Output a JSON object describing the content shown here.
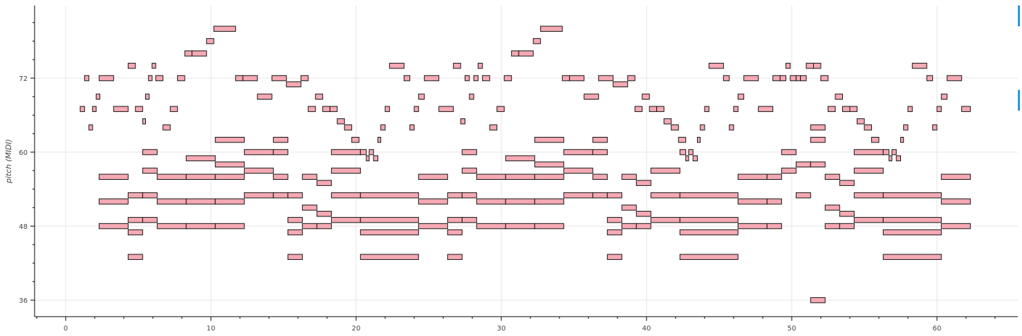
{
  "colors": {
    "note_fill": "#f4a9b3",
    "note_stroke": "#111111",
    "grid": "#e5e5e5",
    "accent": "#1a9be6"
  },
  "chart_data": {
    "type": "piano-roll",
    "ylabel": "pitch (MIDI)",
    "xlabel": "",
    "xlim": [
      -5,
      65.5
    ],
    "ylim": [
      33.5,
      83.5
    ],
    "x_ticks": [
      0,
      10,
      20,
      30,
      40,
      50,
      60
    ],
    "y_ticks": [
      36,
      48,
      60,
      72
    ],
    "x_tick_labels": [
      "0",
      "10",
      "20",
      "30",
      "40",
      "50",
      "60"
    ],
    "y_tick_labels": [
      "36",
      "48",
      "60",
      "72"
    ],
    "grid": true,
    "notes": [
      [
        1.0,
        1.3,
        67
      ],
      [
        1.3,
        1.6,
        72
      ],
      [
        1.6,
        1.85,
        64
      ],
      [
        1.85,
        2.1,
        67
      ],
      [
        2.1,
        2.35,
        69
      ],
      [
        2.3,
        3.3,
        72
      ],
      [
        3.3,
        4.3,
        67
      ],
      [
        2.3,
        4.3,
        56
      ],
      [
        2.3,
        4.3,
        52
      ],
      [
        2.3,
        4.3,
        48
      ],
      [
        4.3,
        4.8,
        74
      ],
      [
        4.8,
        5.3,
        67
      ],
      [
        5.3,
        5.5,
        65
      ],
      [
        5.5,
        5.75,
        69
      ],
      [
        5.7,
        5.95,
        72
      ],
      [
        5.95,
        6.2,
        74
      ],
      [
        6.2,
        6.7,
        72
      ],
      [
        6.7,
        7.2,
        64
      ],
      [
        7.2,
        7.7,
        67
      ],
      [
        7.7,
        8.2,
        72
      ],
      [
        8.2,
        8.7,
        76
      ],
      [
        8.7,
        9.7,
        76
      ],
      [
        9.7,
        10.2,
        78
      ],
      [
        10.2,
        11.7,
        80
      ],
      [
        11.7,
        12.2,
        72
      ],
      [
        12.2,
        13.2,
        72
      ],
      [
        13.2,
        14.2,
        69
      ],
      [
        14.2,
        15.2,
        72
      ],
      [
        15.2,
        16.2,
        71
      ],
      [
        16.2,
        16.7,
        72
      ],
      [
        16.7,
        17.2,
        67
      ],
      [
        17.2,
        17.7,
        69
      ],
      [
        17.7,
        18.2,
        67
      ],
      [
        18.2,
        18.7,
        67
      ],
      [
        18.7,
        19.2,
        65
      ],
      [
        19.2,
        19.7,
        64
      ],
      [
        19.7,
        20.2,
        62
      ],
      [
        4.3,
        5.3,
        53
      ],
      [
        5.3,
        6.3,
        53
      ],
      [
        4.3,
        5.3,
        49
      ],
      [
        5.3,
        6.3,
        49
      ],
      [
        4.3,
        5.3,
        47
      ],
      [
        4.3,
        5.3,
        43
      ],
      [
        5.3,
        6.3,
        60
      ],
      [
        5.3,
        6.3,
        57
      ],
      [
        6.3,
        8.3,
        56
      ],
      [
        8.3,
        10.3,
        56
      ],
      [
        10.3,
        12.3,
        56
      ],
      [
        6.3,
        8.3,
        52
      ],
      [
        8.3,
        10.3,
        52
      ],
      [
        10.3,
        12.3,
        52
      ],
      [
        6.3,
        8.3,
        48
      ],
      [
        8.3,
        10.3,
        48
      ],
      [
        10.3,
        12.3,
        48
      ],
      [
        8.3,
        10.3,
        59
      ],
      [
        10.3,
        12.3,
        58
      ],
      [
        10.3,
        12.3,
        62
      ],
      [
        12.3,
        14.3,
        60
      ],
      [
        14.3,
        15.3,
        60
      ],
      [
        12.3,
        14.3,
        57
      ],
      [
        14.3,
        15.3,
        56
      ],
      [
        12.3,
        14.3,
        53
      ],
      [
        14.3,
        15.3,
        53
      ],
      [
        15.3,
        16.3,
        53
      ],
      [
        14.3,
        15.3,
        62
      ],
      [
        15.3,
        16.3,
        49
      ],
      [
        15.3,
        16.3,
        47
      ],
      [
        15.3,
        16.3,
        43
      ],
      [
        16.3,
        17.3,
        56
      ],
      [
        17.3,
        18.3,
        55
      ],
      [
        16.3,
        17.3,
        51
      ],
      [
        17.3,
        18.3,
        50
      ],
      [
        16.3,
        17.3,
        48
      ],
      [
        17.3,
        18.3,
        48
      ],
      [
        18.3,
        20.3,
        60
      ],
      [
        18.3,
        20.3,
        57
      ],
      [
        18.3,
        20.3,
        53
      ],
      [
        18.3,
        20.3,
        49
      ],
      [
        20.3,
        24.3,
        53
      ],
      [
        20.3,
        24.3,
        49
      ],
      [
        20.3,
        24.3,
        47
      ],
      [
        20.3,
        24.3,
        43
      ],
      [
        20.3,
        20.7,
        60
      ],
      [
        20.7,
        20.9,
        59
      ],
      [
        20.9,
        21.2,
        60
      ],
      [
        21.2,
        21.5,
        59
      ],
      [
        21.5,
        21.7,
        62
      ],
      [
        21.7,
        22.0,
        64
      ],
      [
        22.0,
        22.3,
        67
      ],
      [
        22.3,
        23.3,
        74
      ],
      [
        23.3,
        23.7,
        72
      ],
      [
        23.7,
        24.0,
        64
      ],
      [
        24.0,
        24.3,
        67
      ],
      [
        24.3,
        24.7,
        69
      ],
      [
        24.7,
        25.7,
        72
      ],
      [
        25.7,
        26.7,
        67
      ],
      [
        26.7,
        27.2,
        74
      ],
      [
        27.2,
        27.5,
        65
      ],
      [
        27.5,
        27.8,
        72
      ],
      [
        27.8,
        28.1,
        69
      ],
      [
        28.1,
        28.4,
        72
      ],
      [
        28.4,
        28.7,
        74
      ],
      [
        28.7,
        29.2,
        72
      ],
      [
        29.2,
        29.7,
        64
      ],
      [
        29.7,
        30.2,
        67
      ],
      [
        30.2,
        30.7,
        72
      ],
      [
        30.7,
        31.2,
        76
      ],
      [
        31.2,
        32.2,
        76
      ],
      [
        32.2,
        32.7,
        78
      ],
      [
        32.7,
        34.2,
        80
      ],
      [
        34.2,
        34.7,
        72
      ],
      [
        34.7,
        35.7,
        72
      ],
      [
        35.7,
        36.7,
        69
      ],
      [
        36.7,
        37.7,
        72
      ],
      [
        37.7,
        38.7,
        71
      ],
      [
        38.7,
        39.2,
        72
      ],
      [
        39.2,
        39.7,
        67
      ],
      [
        39.7,
        40.2,
        69
      ],
      [
        40.2,
        40.7,
        67
      ],
      [
        40.7,
        41.2,
        67
      ],
      [
        41.2,
        41.7,
        65
      ],
      [
        41.7,
        42.2,
        64
      ],
      [
        42.2,
        42.7,
        62
      ],
      [
        24.3,
        26.3,
        56
      ],
      [
        24.3,
        26.3,
        52
      ],
      [
        24.3,
        26.3,
        48
      ],
      [
        26.3,
        27.3,
        53
      ],
      [
        26.3,
        27.3,
        49
      ],
      [
        26.3,
        27.3,
        47
      ],
      [
        26.3,
        27.3,
        43
      ],
      [
        27.3,
        28.3,
        53
      ],
      [
        27.3,
        28.3,
        49
      ],
      [
        27.3,
        28.3,
        60
      ],
      [
        27.3,
        28.3,
        57
      ],
      [
        28.3,
        30.3,
        56
      ],
      [
        30.3,
        32.3,
        56
      ],
      [
        32.3,
        34.3,
        56
      ],
      [
        28.3,
        30.3,
        52
      ],
      [
        30.3,
        32.3,
        52
      ],
      [
        32.3,
        34.3,
        52
      ],
      [
        28.3,
        30.3,
        48
      ],
      [
        30.3,
        32.3,
        48
      ],
      [
        32.3,
        34.3,
        48
      ],
      [
        30.3,
        32.3,
        59
      ],
      [
        32.3,
        34.3,
        58
      ],
      [
        32.3,
        34.3,
        62
      ],
      [
        34.3,
        36.3,
        60
      ],
      [
        36.3,
        37.3,
        60
      ],
      [
        34.3,
        36.3,
        57
      ],
      [
        36.3,
        37.3,
        56
      ],
      [
        34.3,
        36.3,
        53
      ],
      [
        36.3,
        37.3,
        53
      ],
      [
        37.3,
        38.3,
        53
      ],
      [
        36.3,
        37.3,
        62
      ],
      [
        37.3,
        38.3,
        49
      ],
      [
        37.3,
        38.3,
        47
      ],
      [
        37.3,
        38.3,
        43
      ],
      [
        38.3,
        39.3,
        56
      ],
      [
        39.3,
        40.3,
        55
      ],
      [
        38.3,
        39.3,
        51
      ],
      [
        39.3,
        40.3,
        50
      ],
      [
        38.3,
        39.3,
        48
      ],
      [
        39.3,
        40.3,
        48
      ],
      [
        40.3,
        42.3,
        57
      ],
      [
        40.3,
        42.3,
        53
      ],
      [
        40.3,
        42.3,
        49
      ],
      [
        42.3,
        46.3,
        53
      ],
      [
        42.3,
        46.3,
        49
      ],
      [
        42.3,
        46.3,
        47
      ],
      [
        42.3,
        46.3,
        43
      ],
      [
        42.3,
        42.7,
        60
      ],
      [
        42.7,
        42.9,
        59
      ],
      [
        42.9,
        43.2,
        60
      ],
      [
        43.2,
        43.5,
        59
      ],
      [
        43.5,
        43.7,
        62
      ],
      [
        43.7,
        44.0,
        64
      ],
      [
        44.0,
        44.3,
        67
      ],
      [
        44.3,
        45.3,
        74
      ],
      [
        45.3,
        45.7,
        72
      ],
      [
        45.7,
        46.0,
        64
      ],
      [
        46.0,
        46.3,
        67
      ],
      [
        46.3,
        46.7,
        69
      ],
      [
        46.7,
        47.7,
        72
      ],
      [
        47.7,
        48.7,
        67
      ],
      [
        48.7,
        49.2,
        72
      ],
      [
        49.2,
        49.6,
        72
      ],
      [
        49.6,
        49.9,
        74
      ],
      [
        49.9,
        50.3,
        72
      ],
      [
        50.3,
        50.6,
        72
      ],
      [
        50.6,
        51.0,
        72
      ],
      [
        51.0,
        51.5,
        74
      ],
      [
        51.5,
        52.0,
        74
      ],
      [
        52.0,
        52.5,
        72
      ],
      [
        52.5,
        53.0,
        67
      ],
      [
        53.0,
        53.5,
        69
      ],
      [
        53.5,
        54.0,
        67
      ],
      [
        54.0,
        54.5,
        67
      ],
      [
        54.5,
        55.0,
        65
      ],
      [
        55.0,
        55.5,
        64
      ],
      [
        55.5,
        56.0,
        62
      ],
      [
        46.3,
        48.3,
        56
      ],
      [
        48.3,
        49.3,
        56
      ],
      [
        46.3,
        48.3,
        52
      ],
      [
        48.3,
        49.3,
        52
      ],
      [
        46.3,
        48.3,
        48
      ],
      [
        48.3,
        49.3,
        48
      ],
      [
        49.3,
        50.3,
        60
      ],
      [
        49.3,
        50.3,
        57
      ],
      [
        50.3,
        51.3,
        53
      ],
      [
        50.3,
        51.3,
        58
      ],
      [
        51.3,
        52.3,
        64
      ],
      [
        51.3,
        52.3,
        62
      ],
      [
        51.3,
        52.3,
        58
      ],
      [
        51.3,
        52.3,
        36
      ],
      [
        52.3,
        53.3,
        56
      ],
      [
        53.3,
        54.3,
        55
      ],
      [
        52.3,
        53.3,
        51
      ],
      [
        53.3,
        54.3,
        50
      ],
      [
        52.3,
        53.3,
        48
      ],
      [
        53.3,
        54.3,
        48
      ],
      [
        54.3,
        56.3,
        60
      ],
      [
        54.3,
        56.3,
        57
      ],
      [
        54.3,
        56.3,
        53
      ],
      [
        54.3,
        56.3,
        49
      ],
      [
        56.3,
        60.3,
        53
      ],
      [
        56.3,
        60.3,
        49
      ],
      [
        56.3,
        60.3,
        47
      ],
      [
        56.3,
        60.3,
        43
      ],
      [
        56.3,
        56.7,
        60
      ],
      [
        56.7,
        56.9,
        59
      ],
      [
        56.9,
        57.2,
        60
      ],
      [
        57.2,
        57.5,
        59
      ],
      [
        57.5,
        57.7,
        62
      ],
      [
        57.7,
        58.0,
        64
      ],
      [
        58.0,
        58.3,
        67
      ],
      [
        58.3,
        59.3,
        74
      ],
      [
        59.3,
        59.7,
        72
      ],
      [
        59.7,
        60.0,
        64
      ],
      [
        60.0,
        60.3,
        67
      ],
      [
        60.3,
        60.7,
        69
      ],
      [
        60.7,
        61.7,
        72
      ],
      [
        61.7,
        62.3,
        67
      ],
      [
        60.3,
        62.3,
        56
      ],
      [
        60.3,
        62.3,
        52
      ],
      [
        60.3,
        62.3,
        48
      ]
    ]
  }
}
